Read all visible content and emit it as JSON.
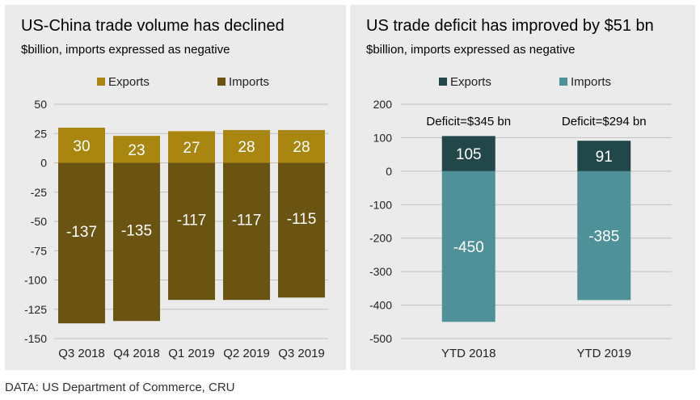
{
  "footer": "DATA: US Department of Commerce, CRU",
  "chart_data": [
    {
      "type": "bar",
      "stacked": true,
      "title": "US-China trade volume has declined",
      "subtitle": "$billion, imports expressed as negative",
      "categories": [
        "Q3 2018",
        "Q4 2018",
        "Q1 2019",
        "Q2 2019",
        "Q3 2019"
      ],
      "series": [
        {
          "name": "Exports",
          "values": [
            30,
            23,
            27,
            28,
            28
          ],
          "color": "#a8860f"
        },
        {
          "name": "Imports",
          "values": [
            -137,
            -135,
            -117,
            -117,
            -115
          ],
          "color": "#6b5412"
        }
      ],
      "ylim": [
        -150,
        50
      ],
      "yticks": [
        50,
        25,
        0,
        -25,
        -50,
        -75,
        -100,
        -125,
        -150
      ],
      "legend": "top",
      "grid": true
    },
    {
      "type": "bar",
      "stacked": true,
      "title": "US trade deficit has improved by $51 bn",
      "subtitle": "$billion, imports expressed as negative",
      "categories": [
        "YTD 2018",
        "YTD 2019"
      ],
      "series": [
        {
          "name": "Exports",
          "values": [
            105,
            91
          ],
          "color": "#22474a"
        },
        {
          "name": "Imports",
          "values": [
            -450,
            -385
          ],
          "color": "#4f9198"
        }
      ],
      "annotations": [
        "Deficit=$345 bn",
        "Deficit=$294 bn"
      ],
      "ylim": [
        -500,
        200
      ],
      "yticks": [
        200,
        100,
        0,
        -100,
        -200,
        -300,
        -400,
        -500
      ],
      "legend": "top",
      "grid": true
    }
  ]
}
